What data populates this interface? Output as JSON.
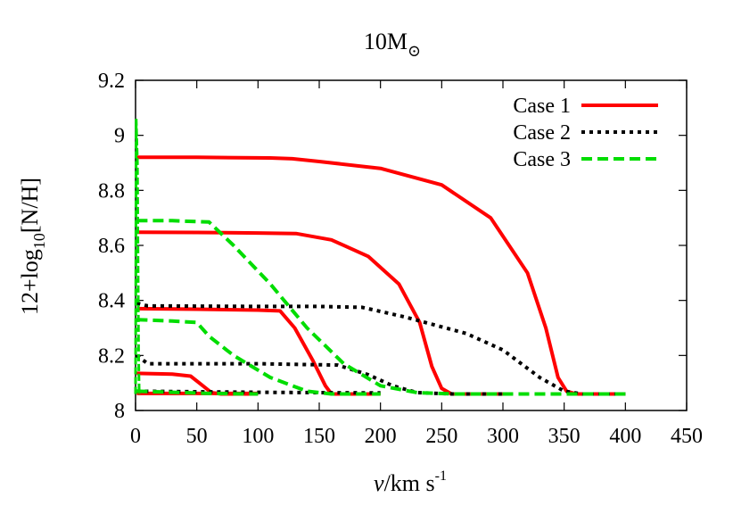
{
  "chart_data": {
    "type": "line",
    "title": "10M",
    "title_subscript": "⊙",
    "ylabel_parts": {
      "main": "12+log",
      "sub": "10",
      "tail": "[N/H]"
    },
    "xlabel_parts": {
      "var": "v",
      "unit": "/km s",
      "sup": "-1"
    },
    "xlim": [
      0,
      450
    ],
    "ylim": [
      8,
      9.2
    ],
    "xticks": [
      0,
      50,
      100,
      150,
      200,
      250,
      300,
      350,
      400,
      450
    ],
    "xtick_labels": [
      "0",
      "50",
      "100",
      "150",
      "200",
      "250",
      "300",
      "350",
      "400",
      "450"
    ],
    "yticks": [
      8,
      8.2,
      8.4,
      8.6,
      8.8,
      9,
      9.2
    ],
    "ytick_labels": [
      "8",
      "8.2",
      "8.4",
      "8.6",
      "8.8",
      "9",
      "9.2"
    ],
    "grid": false,
    "legend_position": "top-right",
    "series": [
      {
        "name": "Case 1",
        "color": "#ff0000",
        "dash": "solid",
        "width": 4,
        "tracks": [
          [
            [
              1,
              8.92
            ],
            [
              50,
              8.92
            ],
            [
              110,
              8.918
            ],
            [
              128,
              8.915
            ],
            [
              150,
              8.905
            ],
            [
              200,
              8.88
            ],
            [
              250,
              8.82
            ],
            [
              290,
              8.7
            ],
            [
              320,
              8.5
            ],
            [
              335,
              8.3
            ],
            [
              345,
              8.12
            ],
            [
              352,
              8.07
            ],
            [
              360,
              8.06
            ],
            [
              400,
              8.06
            ]
          ],
          [
            [
              1,
              8.648
            ],
            [
              50,
              8.647
            ],
            [
              100,
              8.645
            ],
            [
              131,
              8.643
            ],
            [
              160,
              8.62
            ],
            [
              190,
              8.56
            ],
            [
              215,
              8.46
            ],
            [
              232,
              8.32
            ],
            [
              242,
              8.16
            ],
            [
              250,
              8.08
            ],
            [
              258,
              8.06
            ],
            [
              300,
              8.06
            ]
          ],
          [
            [
              1,
              8.37
            ],
            [
              50,
              8.368
            ],
            [
              100,
              8.365
            ],
            [
              118,
              8.362
            ],
            [
              130,
              8.3
            ],
            [
              145,
              8.18
            ],
            [
              155,
              8.09
            ],
            [
              160,
              8.06
            ],
            [
              200,
              8.06
            ]
          ],
          [
            [
              1,
              8.135
            ],
            [
              30,
              8.132
            ],
            [
              45,
              8.125
            ],
            [
              55,
              8.09
            ],
            [
              62,
              8.065
            ],
            [
              70,
              8.06
            ],
            [
              100,
              8.06
            ]
          ],
          [
            [
              1,
              8.062
            ],
            [
              50,
              8.062
            ],
            [
              100,
              8.062
            ]
          ]
        ]
      },
      {
        "name": "Case 2",
        "color": "#000000",
        "dash": "dotted",
        "width": 4,
        "tracks": [
          [
            [
              1,
              8.39
            ],
            [
              10,
              8.38
            ],
            [
              100,
              8.378
            ],
            [
              150,
              8.378
            ],
            [
              185,
              8.375
            ],
            [
              220,
              8.34
            ],
            [
              270,
              8.28
            ],
            [
              300,
              8.22
            ],
            [
              330,
              8.12
            ],
            [
              350,
              8.07
            ],
            [
              365,
              8.06
            ],
            [
              400,
              8.06
            ]
          ],
          [
            [
              1,
              8.2
            ],
            [
              10,
              8.17
            ],
            [
              100,
              8.17
            ],
            [
              165,
              8.165
            ],
            [
              190,
              8.13
            ],
            [
              210,
              8.09
            ],
            [
              230,
              8.065
            ],
            [
              260,
              8.06
            ],
            [
              300,
              8.06
            ]
          ],
          [
            [
              1,
              8.07
            ],
            [
              50,
              8.068
            ],
            [
              100,
              8.066
            ],
            [
              150,
              8.065
            ],
            [
              200,
              8.064
            ]
          ]
        ]
      },
      {
        "name": "Case 3",
        "color": "#00dd00",
        "dash": "dashed",
        "width": 4,
        "tracks": [
          [
            [
              1,
              8.69
            ],
            [
              30,
              8.69
            ],
            [
              60,
              8.685
            ],
            [
              80,
              8.6
            ],
            [
              110,
              8.46
            ],
            [
              140,
              8.3
            ],
            [
              170,
              8.17
            ],
            [
              200,
              8.09
            ],
            [
              230,
              8.065
            ],
            [
              260,
              8.06
            ],
            [
              400,
              8.06
            ]
          ],
          [
            [
              1,
              8.33
            ],
            [
              30,
              8.325
            ],
            [
              50,
              8.32
            ],
            [
              60,
              8.27
            ],
            [
              80,
              8.2
            ],
            [
              110,
              8.12
            ],
            [
              140,
              8.07
            ],
            [
              160,
              8.06
            ],
            [
              200,
              8.06
            ]
          ],
          [
            [
              1,
              8.07
            ],
            [
              30,
              8.066
            ],
            [
              60,
              8.062
            ],
            [
              100,
              8.06
            ]
          ]
        ]
      }
    ],
    "spike": {
      "color": "#00dd00",
      "points": [
        [
          0,
          8.06
        ],
        [
          0.5,
          9.06
        ],
        [
          1.5,
          8.9
        ],
        [
          2.5,
          8.2
        ],
        [
          3,
          8.06
        ]
      ]
    }
  }
}
